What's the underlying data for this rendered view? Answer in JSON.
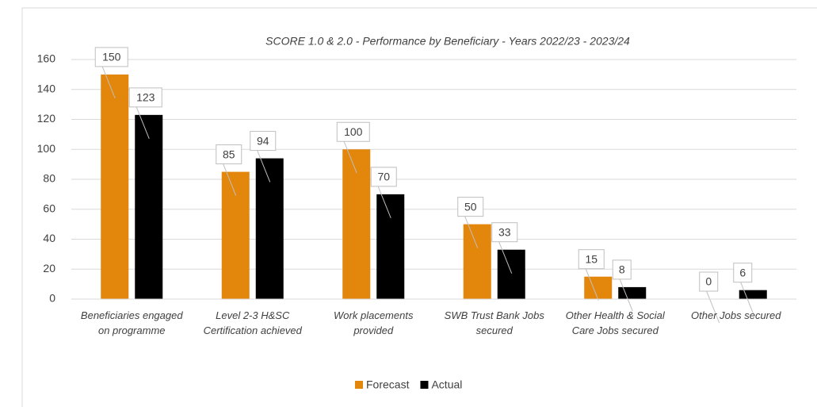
{
  "chart_data": {
    "type": "bar",
    "title": "SCORE 1.0 & 2.0 - Performance by Beneficiary - Years 2022/23 - 2023/24",
    "categories": [
      "Beneficiaries engaged on programme",
      "Level 2-3 H&SC Certification achieved",
      "Work placements provided",
      "SWB Trust Bank Jobs secured",
      "Other Health & Social Care Jobs secured",
      "Other Jobs secured"
    ],
    "series": [
      {
        "name": "Forecast",
        "color": "#e3860c",
        "values": [
          150,
          85,
          100,
          50,
          15,
          0
        ]
      },
      {
        "name": "Actual",
        "color": "#000000",
        "values": [
          123,
          94,
          70,
          33,
          8,
          6
        ]
      }
    ],
    "ylim": [
      0,
      160
    ],
    "yticks": [
      0,
      20,
      40,
      60,
      80,
      100,
      120,
      140,
      160
    ],
    "grid": true,
    "legend": "bottom"
  }
}
